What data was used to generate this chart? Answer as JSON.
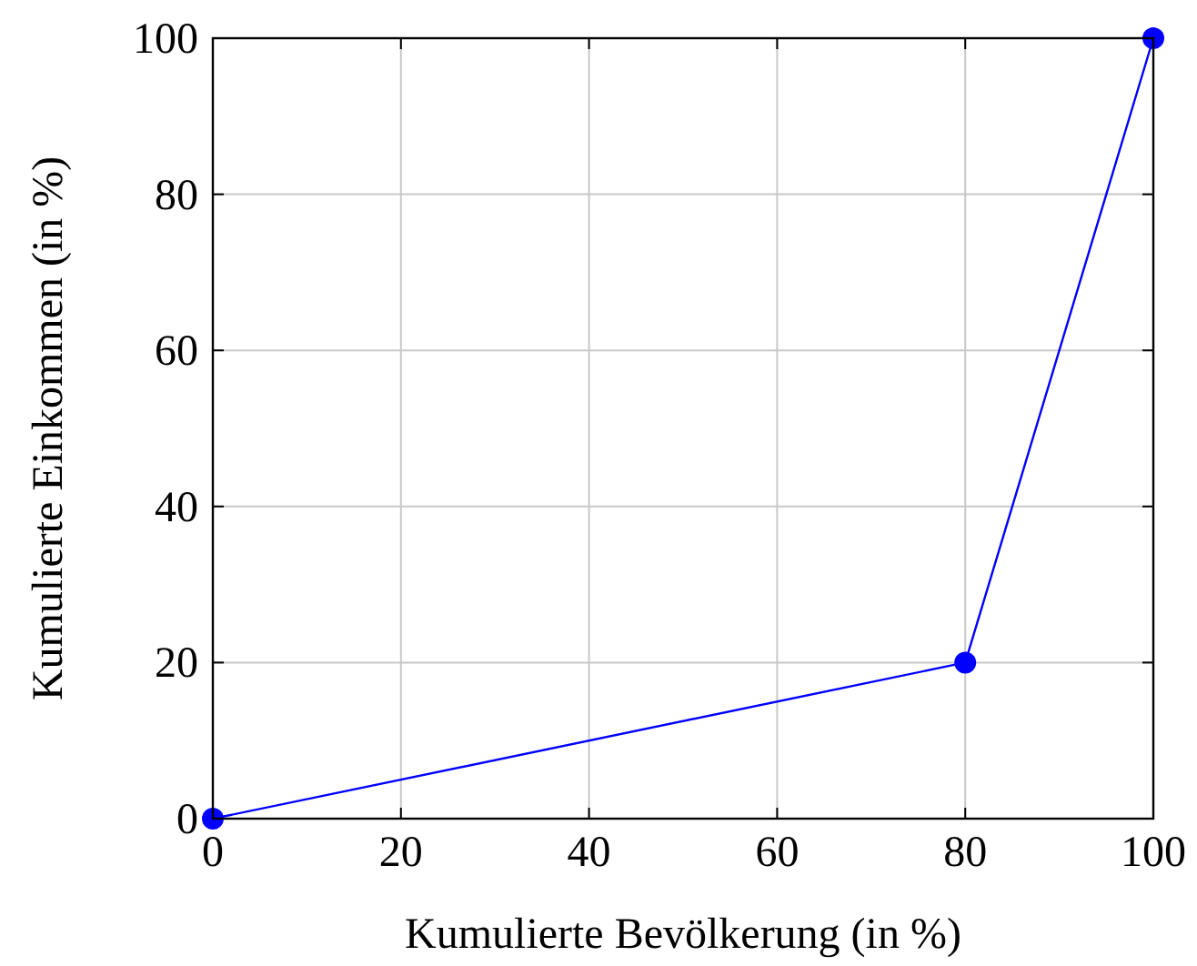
{
  "chart_data": {
    "type": "line",
    "xlabel": "Kumulierte Bevölkerung (in %)",
    "ylabel": "Kumulierte Einkommen (in %)",
    "x": [
      0,
      80,
      100
    ],
    "series": [
      {
        "color": "#0000ff",
        "values": [
          0,
          20,
          100
        ]
      }
    ],
    "xlim": [
      0,
      100
    ],
    "ylim": [
      0,
      100
    ],
    "xticks": [
      0,
      20,
      40,
      60,
      80,
      100
    ],
    "yticks": [
      0,
      20,
      40,
      60,
      80,
      100
    ],
    "grid": true,
    "marker": "circle",
    "line_style": "solid"
  }
}
